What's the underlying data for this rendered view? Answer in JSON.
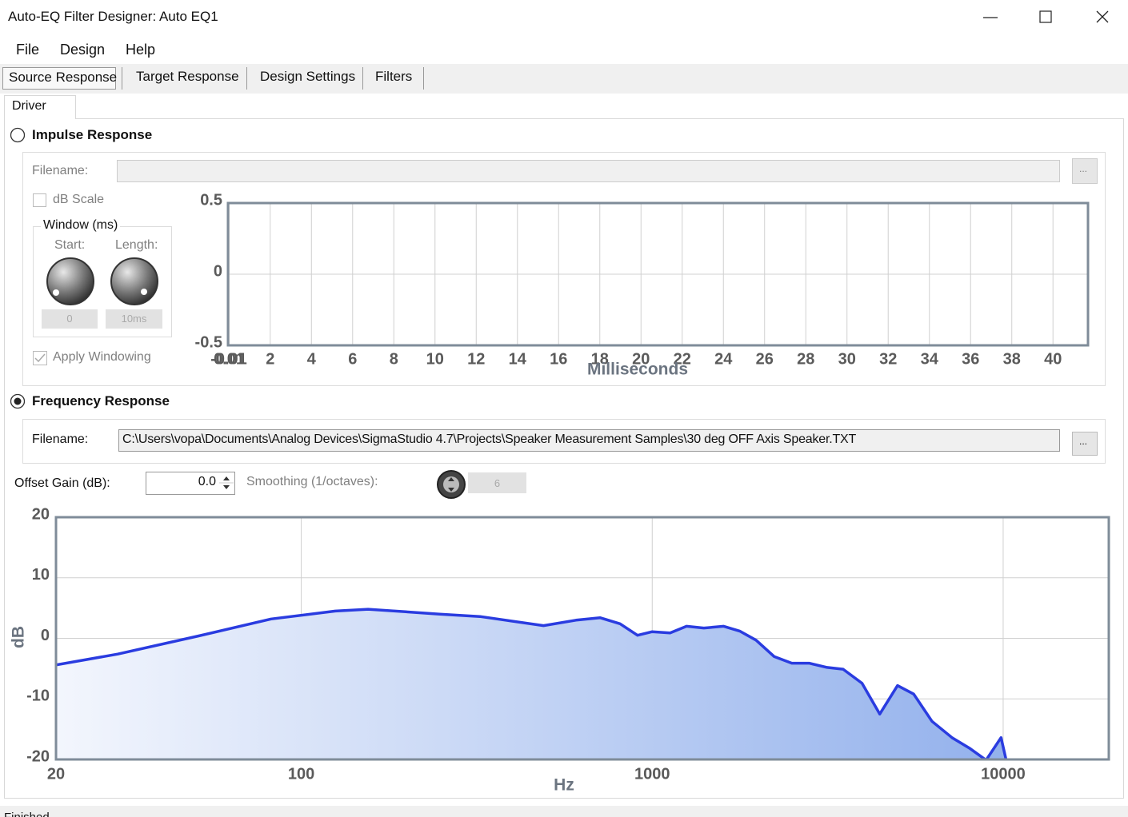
{
  "window": {
    "title": "Auto-EQ Filter Designer: Auto EQ1"
  },
  "menu": [
    "File",
    "Design",
    "Help"
  ],
  "tabs": [
    "Source Response",
    "Target Response",
    "Design Settings",
    "Filters"
  ],
  "subtab": "Driver",
  "impulse": {
    "label": "Impulse Response",
    "filename_label": "Filename:",
    "browse": "...",
    "db_scale": "dB Scale",
    "window_label": "Window (ms)",
    "start_label": "Start:",
    "length_label": "Length:",
    "start_value": "0",
    "length_value": "10ms",
    "apply_windowing": "Apply Windowing"
  },
  "frequency": {
    "label": "Frequency Response",
    "filename_label": "Filename:",
    "filename": "C:\\Users\\vopa\\Documents\\Analog Devices\\SigmaStudio 4.7\\Projects\\Speaker Measurement Samples\\30 deg OFF Axis Speaker.TXT",
    "browse": "...",
    "offset_label": "Offset Gain (dB):",
    "offset_value": "0.0",
    "smoothing_label": "Smoothing (1/octaves):",
    "smoothing_value": "6"
  },
  "status": "Finished",
  "chart_data": [
    {
      "type": "line",
      "x_label": "Milliseconds",
      "xlim": [
        -0.05,
        41.7
      ],
      "xticks": [
        -0.01,
        0.01,
        2,
        4,
        6,
        8,
        10,
        12,
        14,
        16,
        18,
        20,
        22,
        24,
        26,
        28,
        30,
        32,
        34,
        36,
        38,
        40
      ],
      "ylim": [
        -0.5,
        0.5
      ],
      "yticks": [
        -0.5,
        0,
        0.5
      ],
      "grid": true
    },
    {
      "type": "area",
      "x_label": "Hz",
      "y_label": "dB",
      "x_scale": "log",
      "xlim": [
        20,
        20000
      ],
      "xticks": [
        20,
        100,
        1000,
        10000
      ],
      "ylim": [
        -20,
        20
      ],
      "yticks": [
        20,
        10,
        0,
        -10,
        -20
      ],
      "grid": true,
      "fill_colors": [
        "#f3f6fd",
        "#93b1ec"
      ],
      "x": [
        20,
        30,
        51,
        82,
        125,
        155,
        248,
        323,
        490,
        606,
        710,
        810,
        908,
        1000,
        1124,
        1253,
        1403,
        1598,
        1775,
        1977,
        2225,
        2500,
        2800,
        3150,
        3500,
        3960,
        4450,
        5000,
        5560,
        6270,
        7150,
        8000,
        8940,
        9860,
        10200
      ],
      "series": [
        {
          "color": "#2a3ce0",
          "values": [
            -4.4,
            -2.6,
            0.4,
            3.2,
            4.5,
            4.8,
            4.0,
            3.6,
            2.1,
            3.0,
            3.4,
            2.4,
            0.5,
            1.1,
            0.9,
            2.0,
            1.7,
            2.0,
            1.2,
            -0.3,
            -3.0,
            -4.1,
            -4.1,
            -4.8,
            -5.1,
            -7.4,
            -12.5,
            -7.8,
            -9.2,
            -13.7,
            -16.4,
            -18.1,
            -20.1,
            -16.4,
            -20.1
          ]
        }
      ]
    }
  ]
}
